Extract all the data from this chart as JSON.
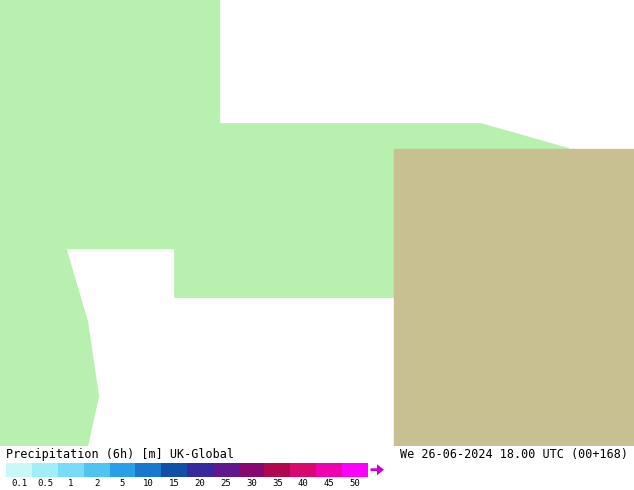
{
  "title_left": "Precipitation (6h) [m] UK-Global",
  "title_right": "We 26-06-2024 18.00 UTC (00+168)",
  "colorbar_values": [
    0.1,
    0.5,
    1,
    2,
    5,
    10,
    15,
    20,
    25,
    30,
    35,
    40,
    45,
    50
  ],
  "colorbar_colors": [
    "#b0f0f0",
    "#90e0f8",
    "#70c8f8",
    "#50a8f0",
    "#3888e0",
    "#2060c8",
    "#1840a0",
    "#402080",
    "#602060",
    "#801848",
    "#a01030",
    "#c00850",
    "#e000a0",
    "#ff00ff"
  ],
  "bg_color": "#ffffff",
  "land_green": "#b8f0b0",
  "land_tan": "#c8c090",
  "sea_color": "#e8eef5",
  "border_color": "#9090aa",
  "figsize": [
    6.34,
    4.9
  ],
  "dpi": 100
}
